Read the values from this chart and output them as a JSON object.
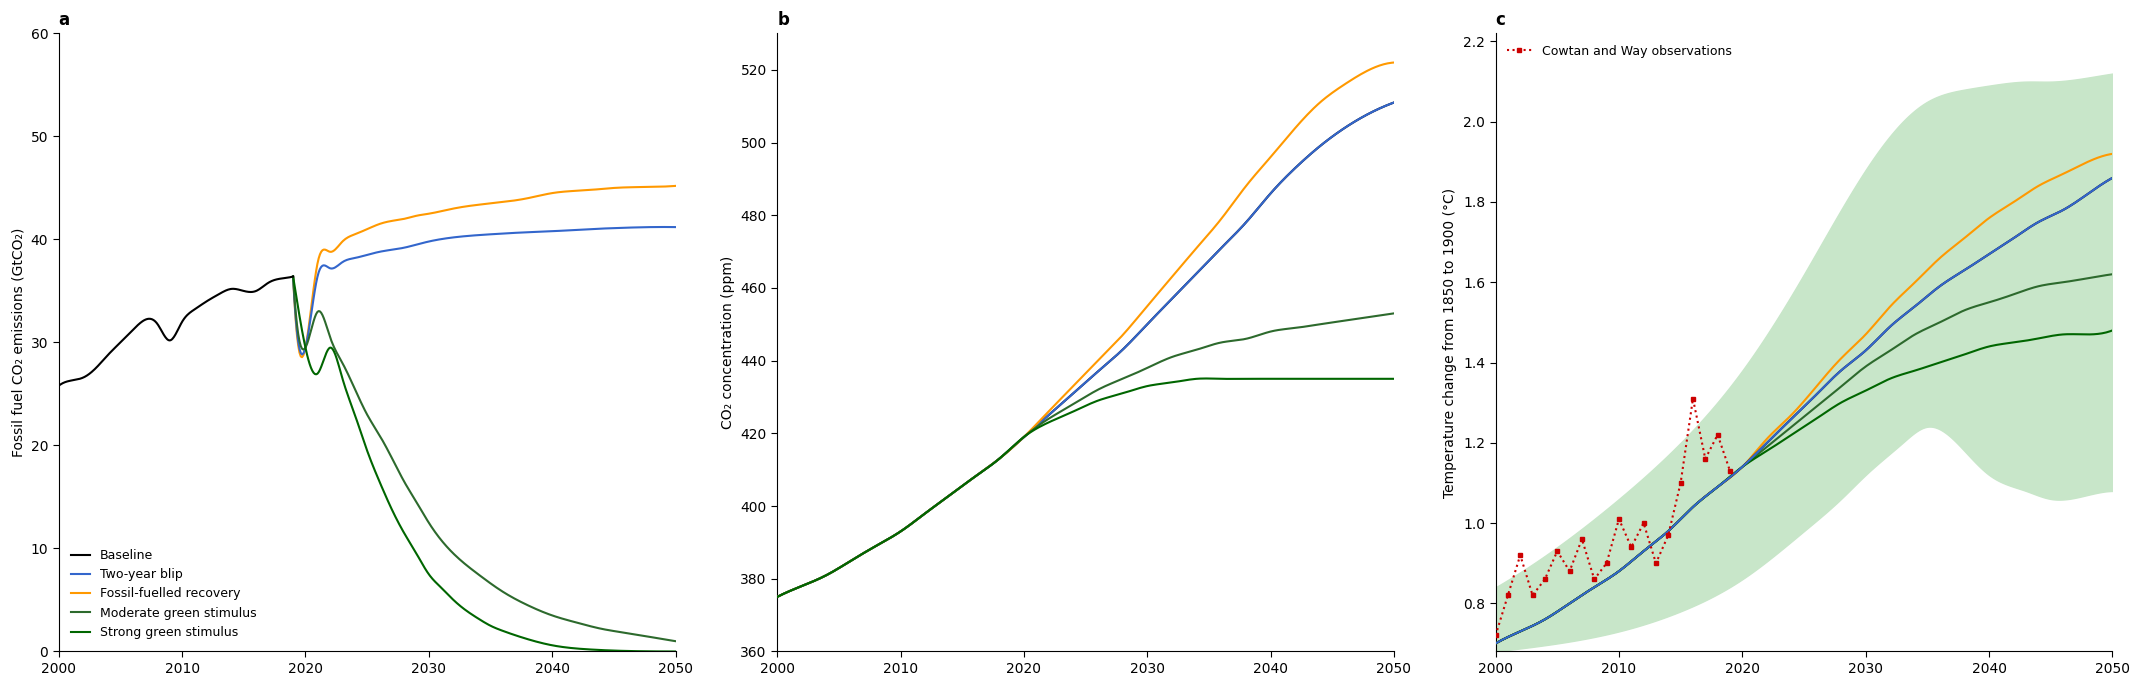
{
  "panel_a": {
    "title": "a",
    "ylabel": "Fossil fuel CO₂ emissions (GtCO₂)",
    "xlim": [
      2000,
      2050
    ],
    "ylim": [
      0,
      60
    ],
    "yticks": [
      0,
      10,
      20,
      30,
      40,
      50,
      60
    ],
    "xticks": [
      2000,
      2010,
      2020,
      2030,
      2040,
      2050
    ],
    "historical": {
      "x": [
        2000,
        2001,
        2002,
        2003,
        2004,
        2005,
        2006,
        2007,
        2008,
        2009,
        2010,
        2011,
        2012,
        2013,
        2014,
        2015,
        2016,
        2017,
        2018,
        2019
      ],
      "y": [
        25.8,
        26.3,
        26.6,
        27.5,
        28.8,
        30.0,
        31.2,
        32.2,
        31.8,
        30.2,
        32.0,
        33.2,
        34.0,
        34.7,
        35.2,
        35.0,
        35.0,
        35.8,
        36.2,
        36.4
      ],
      "color": "#000000",
      "lw": 1.5
    },
    "two_year_blip": {
      "x": [
        2019,
        2020,
        2021,
        2022,
        2023,
        2024,
        2025,
        2026,
        2027,
        2028,
        2029,
        2030,
        2032,
        2035,
        2038,
        2040,
        2043,
        2045,
        2048,
        2050
      ],
      "y": [
        36.4,
        29.5,
        36.5,
        37.2,
        37.8,
        38.2,
        38.5,
        38.8,
        39.0,
        39.2,
        39.5,
        39.8,
        40.2,
        40.5,
        40.7,
        40.8,
        41.0,
        41.1,
        41.2,
        41.2
      ],
      "color": "#3366cc",
      "lw": 1.5
    },
    "fossil_fuelled": {
      "x": [
        2019,
        2020,
        2021,
        2022,
        2023,
        2024,
        2025,
        2026,
        2027,
        2028,
        2029,
        2030,
        2032,
        2035,
        2038,
        2040,
        2043,
        2045,
        2048,
        2050
      ],
      "y": [
        36.4,
        29.5,
        37.8,
        38.8,
        39.8,
        40.5,
        41.0,
        41.5,
        41.8,
        42.0,
        42.3,
        42.5,
        43.0,
        43.5,
        44.0,
        44.5,
        44.8,
        45.0,
        45.1,
        45.2
      ],
      "color": "#ff9900",
      "lw": 1.5
    },
    "moderate_green": {
      "x": [
        2019,
        2020,
        2021,
        2022,
        2023,
        2024,
        2025,
        2026,
        2027,
        2028,
        2029,
        2030,
        2032,
        2034,
        2036,
        2038,
        2040,
        2042,
        2044,
        2046,
        2048,
        2050
      ],
      "y": [
        36.4,
        29.5,
        33.0,
        30.5,
        28.0,
        25.5,
        23.0,
        21.0,
        18.8,
        16.5,
        14.5,
        12.5,
        9.5,
        7.5,
        5.8,
        4.5,
        3.5,
        2.8,
        2.2,
        1.8,
        1.4,
        1.0
      ],
      "color": "#2d6a2d",
      "lw": 1.5
    },
    "strong_green": {
      "x": [
        2019,
        2020,
        2021,
        2022,
        2023,
        2024,
        2025,
        2026,
        2027,
        2028,
        2029,
        2030,
        2031,
        2032,
        2033,
        2034,
        2035,
        2036,
        2038,
        2040,
        2043,
        2046,
        2050
      ],
      "y": [
        36.4,
        29.5,
        27.0,
        29.5,
        26.5,
        23.0,
        19.5,
        16.5,
        13.8,
        11.5,
        9.5,
        7.5,
        6.2,
        5.0,
        4.0,
        3.2,
        2.5,
        2.0,
        1.2,
        0.6,
        0.2,
        0.05,
        0.0
      ],
      "color": "#006600",
      "lw": 1.5
    },
    "legend_labels": [
      "Baseline",
      "Two-year blip",
      "Fossil-fuelled recovery",
      "Moderate green stimulus",
      "Strong green stimulus"
    ],
    "legend_colors": [
      "#000000",
      "#3366cc",
      "#ff9900",
      "#2d6a2d",
      "#006600"
    ]
  },
  "panel_b": {
    "title": "b",
    "ylabel": "CO₂ concentration (ppm)",
    "xlim": [
      2000,
      2050
    ],
    "ylim": [
      360,
      530
    ],
    "yticks": [
      360,
      380,
      400,
      420,
      440,
      460,
      480,
      500,
      520
    ],
    "xticks": [
      2000,
      2010,
      2020,
      2030,
      2040,
      2050
    ],
    "baseline": {
      "x": [
        2000,
        2002,
        2004,
        2006,
        2008,
        2010,
        2012,
        2014,
        2016,
        2018,
        2020,
        2022,
        2024,
        2026,
        2028,
        2030,
        2032,
        2034,
        2036,
        2038,
        2040,
        2042,
        2044,
        2046,
        2048,
        2050
      ],
      "y": [
        375,
        378,
        381,
        385,
        389,
        393,
        398,
        403,
        408,
        413,
        419,
        425,
        431,
        437,
        443,
        450,
        457,
        464,
        471,
        478,
        486,
        493,
        499,
        504,
        508,
        511
      ],
      "color": "#000000",
      "lw": 1.5
    },
    "two_year_blip": {
      "x": [
        2000,
        2002,
        2004,
        2006,
        2008,
        2010,
        2012,
        2014,
        2016,
        2018,
        2020,
        2022,
        2024,
        2026,
        2028,
        2030,
        2032,
        2034,
        2036,
        2038,
        2040,
        2042,
        2044,
        2046,
        2048,
        2050
      ],
      "y": [
        375,
        378,
        381,
        385,
        389,
        393,
        398,
        403,
        408,
        413,
        419,
        425,
        431,
        437,
        443,
        450,
        457,
        464,
        471,
        478,
        486,
        493,
        499,
        504,
        508,
        511
      ],
      "color": "#3366cc",
      "lw": 1.5
    },
    "fossil_fuelled": {
      "x": [
        2000,
        2002,
        2004,
        2006,
        2008,
        2010,
        2012,
        2014,
        2016,
        2018,
        2020,
        2022,
        2024,
        2026,
        2028,
        2030,
        2032,
        2034,
        2036,
        2038,
        2040,
        2042,
        2044,
        2046,
        2048,
        2050
      ],
      "y": [
        375,
        378,
        381,
        385,
        389,
        393,
        398,
        403,
        408,
        413,
        419,
        426,
        433,
        440,
        447,
        455,
        463,
        471,
        479,
        488,
        496,
        504,
        511,
        516,
        520,
        522
      ],
      "color": "#ff9900",
      "lw": 1.5
    },
    "moderate_green": {
      "x": [
        2000,
        2002,
        2004,
        2006,
        2008,
        2010,
        2012,
        2014,
        2016,
        2018,
        2020,
        2022,
        2024,
        2026,
        2028,
        2030,
        2032,
        2034,
        2036,
        2038,
        2040,
        2042,
        2044,
        2046,
        2048,
        2050
      ],
      "y": [
        375,
        378,
        381,
        385,
        389,
        393,
        398,
        403,
        408,
        413,
        419,
        424,
        428,
        432,
        435,
        438,
        441,
        443,
        445,
        446,
        448,
        449,
        450,
        451,
        452,
        453
      ],
      "color": "#2d6a2d",
      "lw": 1.5
    },
    "strong_green": {
      "x": [
        2000,
        2002,
        2004,
        2006,
        2008,
        2010,
        2012,
        2014,
        2016,
        2018,
        2020,
        2022,
        2024,
        2026,
        2028,
        2030,
        2032,
        2034,
        2036,
        2038,
        2040,
        2042,
        2044,
        2046,
        2048,
        2050
      ],
      "y": [
        375,
        378,
        381,
        385,
        389,
        393,
        398,
        403,
        408,
        413,
        419,
        423,
        426,
        429,
        431,
        433,
        434,
        435,
        435,
        435,
        435,
        435,
        435,
        435,
        435,
        435
      ],
      "color": "#006600",
      "lw": 1.5
    }
  },
  "panel_c": {
    "title": "c",
    "ylabel": "Temperature change from 1850 to 1900 (°C)",
    "xlim": [
      2000,
      2050
    ],
    "ylim": [
      0.68,
      2.22
    ],
    "yticks": [
      0.8,
      1.0,
      1.2,
      1.4,
      1.6,
      1.8,
      2.0,
      2.2
    ],
    "xticks": [
      2000,
      2010,
      2020,
      2030,
      2040,
      2050
    ],
    "shade_x": [
      2000,
      2005,
      2010,
      2015,
      2020,
      2025,
      2028,
      2030,
      2033,
      2035,
      2038,
      2040,
      2043,
      2045,
      2048,
      2050
    ],
    "shade_upper": [
      0.84,
      0.94,
      1.06,
      1.2,
      1.38,
      1.62,
      1.78,
      1.88,
      2.0,
      2.05,
      2.08,
      2.09,
      2.1,
      2.1,
      2.11,
      2.12
    ],
    "shade_lower": [
      0.68,
      0.7,
      0.73,
      0.78,
      0.86,
      0.98,
      1.06,
      1.12,
      1.2,
      1.24,
      1.18,
      1.12,
      1.08,
      1.06,
      1.07,
      1.08
    ],
    "shade_color": "#c8e6c9",
    "baseline": {
      "x": [
        2000,
        2002,
        2004,
        2006,
        2008,
        2010,
        2012,
        2014,
        2016,
        2018,
        2020,
        2022,
        2024,
        2026,
        2028,
        2030,
        2032,
        2034,
        2036,
        2038,
        2040,
        2042,
        2044,
        2046,
        2048,
        2050
      ],
      "y": [
        0.7,
        0.73,
        0.76,
        0.8,
        0.84,
        0.88,
        0.93,
        0.98,
        1.04,
        1.09,
        1.14,
        1.2,
        1.26,
        1.32,
        1.38,
        1.43,
        1.49,
        1.54,
        1.59,
        1.63,
        1.67,
        1.71,
        1.75,
        1.78,
        1.82,
        1.86
      ],
      "color": "#000000",
      "lw": 1.5
    },
    "two_year_blip": {
      "x": [
        2000,
        2002,
        2004,
        2006,
        2008,
        2010,
        2012,
        2014,
        2016,
        2018,
        2020,
        2022,
        2024,
        2026,
        2028,
        2030,
        2032,
        2034,
        2036,
        2038,
        2040,
        2042,
        2044,
        2046,
        2048,
        2050
      ],
      "y": [
        0.7,
        0.73,
        0.76,
        0.8,
        0.84,
        0.88,
        0.93,
        0.98,
        1.04,
        1.09,
        1.14,
        1.2,
        1.26,
        1.32,
        1.38,
        1.43,
        1.49,
        1.54,
        1.59,
        1.63,
        1.67,
        1.71,
        1.75,
        1.78,
        1.82,
        1.86
      ],
      "color": "#3366cc",
      "lw": 1.5
    },
    "fossil_fuelled": {
      "x": [
        2000,
        2002,
        2004,
        2006,
        2008,
        2010,
        2012,
        2014,
        2016,
        2018,
        2020,
        2022,
        2024,
        2026,
        2028,
        2030,
        2032,
        2034,
        2036,
        2038,
        2040,
        2042,
        2044,
        2046,
        2048,
        2050
      ],
      "y": [
        0.7,
        0.73,
        0.76,
        0.8,
        0.84,
        0.88,
        0.93,
        0.98,
        1.04,
        1.09,
        1.14,
        1.21,
        1.27,
        1.34,
        1.41,
        1.47,
        1.54,
        1.6,
        1.66,
        1.71,
        1.76,
        1.8,
        1.84,
        1.87,
        1.9,
        1.92
      ],
      "color": "#ff9900",
      "lw": 1.5
    },
    "moderate_green": {
      "x": [
        2000,
        2002,
        2004,
        2006,
        2008,
        2010,
        2012,
        2014,
        2016,
        2018,
        2020,
        2022,
        2024,
        2026,
        2028,
        2030,
        2032,
        2034,
        2036,
        2038,
        2040,
        2042,
        2044,
        2046,
        2048,
        2050
      ],
      "y": [
        0.7,
        0.73,
        0.76,
        0.8,
        0.84,
        0.88,
        0.93,
        0.98,
        1.04,
        1.09,
        1.14,
        1.19,
        1.24,
        1.29,
        1.34,
        1.39,
        1.43,
        1.47,
        1.5,
        1.53,
        1.55,
        1.57,
        1.59,
        1.6,
        1.61,
        1.62
      ],
      "color": "#2d6a2d",
      "lw": 1.5
    },
    "strong_green": {
      "x": [
        2000,
        2002,
        2004,
        2006,
        2008,
        2010,
        2012,
        2014,
        2016,
        2018,
        2020,
        2022,
        2024,
        2026,
        2028,
        2030,
        2032,
        2034,
        2036,
        2038,
        2040,
        2042,
        2044,
        2046,
        2048,
        2050
      ],
      "y": [
        0.7,
        0.73,
        0.76,
        0.8,
        0.84,
        0.88,
        0.93,
        0.98,
        1.04,
        1.09,
        1.14,
        1.18,
        1.22,
        1.26,
        1.3,
        1.33,
        1.36,
        1.38,
        1.4,
        1.42,
        1.44,
        1.45,
        1.46,
        1.47,
        1.47,
        1.48
      ],
      "color": "#006600",
      "lw": 1.5
    },
    "cowtan_way": {
      "x": [
        2000,
        2001,
        2002,
        2003,
        2004,
        2005,
        2006,
        2007,
        2008,
        2009,
        2010,
        2011,
        2012,
        2013,
        2014,
        2015,
        2016,
        2017,
        2018,
        2019
      ],
      "y": [
        0.72,
        0.82,
        0.92,
        0.82,
        0.86,
        0.93,
        0.88,
        0.96,
        0.86,
        0.9,
        1.01,
        0.94,
        1.0,
        0.9,
        0.97,
        1.1,
        1.31,
        1.16,
        1.22,
        1.13
      ],
      "color": "#cc0000",
      "lw": 1.5
    },
    "legend_label": "Cowtan and Way observations"
  }
}
